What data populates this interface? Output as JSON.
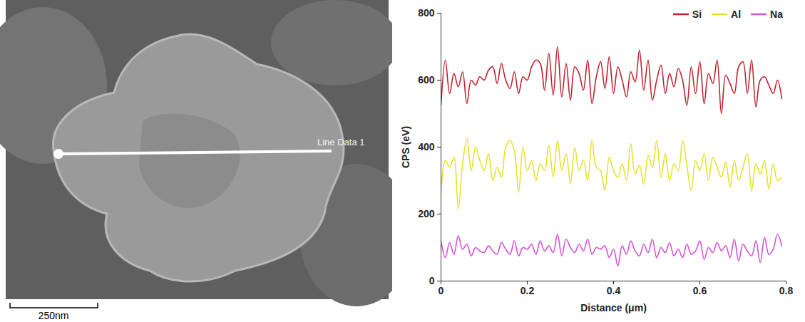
{
  "chart_data": {
    "type": "line",
    "x_label": "Distance (μm)",
    "y_label": "CPS (eV)",
    "x": [
      0,
      0.01,
      0.02,
      0.03,
      0.04,
      0.05,
      0.06,
      0.07,
      0.08,
      0.09,
      0.1,
      0.11,
      0.12,
      0.13,
      0.14,
      0.15,
      0.16,
      0.17,
      0.18,
      0.19,
      0.2,
      0.21,
      0.22,
      0.23,
      0.24,
      0.25,
      0.26,
      0.27,
      0.28,
      0.29,
      0.3,
      0.31,
      0.32,
      0.33,
      0.34,
      0.35,
      0.36,
      0.37,
      0.38,
      0.39,
      0.4,
      0.41,
      0.42,
      0.43,
      0.44,
      0.45,
      0.46,
      0.47,
      0.48,
      0.49,
      0.5,
      0.51,
      0.52,
      0.53,
      0.54,
      0.55,
      0.56,
      0.57,
      0.58,
      0.59,
      0.6,
      0.61,
      0.62,
      0.63,
      0.64,
      0.65,
      0.66,
      0.67,
      0.68,
      0.69,
      0.7,
      0.71,
      0.72,
      0.73,
      0.74,
      0.75,
      0.76,
      0.77,
      0.78,
      0.79
    ],
    "series": [
      {
        "name": "Si",
        "color": "#c0202a",
        "values": [
          525,
          660,
          560,
          620,
          580,
          625,
          530,
          600,
          585,
          610,
          600,
          630,
          640,
          590,
          650,
          600,
          575,
          625,
          560,
          610,
          600,
          640,
          660,
          650,
          570,
          680,
          555,
          700,
          550,
          650,
          540,
          640,
          620,
          570,
          660,
          530,
          610,
          655,
          575,
          670,
          560,
          640,
          600,
          550,
          625,
          595,
          690,
          570,
          660,
          540,
          600,
          645,
          560,
          620,
          580,
          635,
          600,
          525,
          640,
          560,
          655,
          530,
          620,
          590,
          660,
          500,
          615,
          590,
          560,
          640,
          655,
          560,
          660,
          520,
          600,
          610,
          585,
          560,
          600,
          545
        ]
      },
      {
        "name": "Al",
        "color": "#e3e32c",
        "values": [
          260,
          360,
          340,
          370,
          215,
          350,
          425,
          330,
          400,
          360,
          330,
          380,
          300,
          340,
          310,
          400,
          420,
          390,
          265,
          400,
          330,
          360,
          300,
          350,
          330,
          405,
          310,
          420,
          330,
          380,
          290,
          400,
          330,
          360,
          300,
          420,
          340,
          330,
          270,
          370,
          330,
          310,
          350,
          300,
          410,
          320,
          345,
          290,
          375,
          340,
          420,
          310,
          380,
          300,
          350,
          330,
          420,
          345,
          270,
          360,
          330,
          380,
          300,
          370,
          340,
          310,
          355,
          280,
          360,
          300,
          340,
          380,
          270,
          350,
          320,
          360,
          275,
          350,
          300,
          310
        ]
      },
      {
        "name": "Na",
        "color": "#d64fd6",
        "values": [
          120,
          70,
          115,
          80,
          135,
          95,
          110,
          75,
          100,
          90,
          85,
          105,
          90,
          80,
          115,
          95,
          80,
          120,
          75,
          100,
          95,
          110,
          80,
          120,
          90,
          105,
          85,
          140,
          75,
          125,
          100,
          85,
          110,
          90,
          125,
          80,
          100,
          95,
          105,
          70,
          95,
          45,
          105,
          80,
          120,
          90,
          75,
          110,
          85,
          125,
          70,
          100,
          85,
          115,
          75,
          95,
          70,
          110,
          80,
          90,
          120,
          65,
          100,
          85,
          115,
          90,
          105,
          70,
          125,
          60,
          110,
          90,
          75,
          120,
          55,
          130,
          80,
          95,
          140,
          105
        ]
      }
    ],
    "xlim": [
      0,
      0.8
    ],
    "xticks": [
      0,
      0.2,
      0.4,
      0.6,
      0.8
    ],
    "ylim": [
      0,
      800
    ],
    "yticks": [
      0,
      200,
      400,
      600,
      800
    ],
    "grid": false,
    "legend": "top-right"
  },
  "micrograph": {
    "line_label": "Line Data 1",
    "scale_bar": "250nm"
  }
}
